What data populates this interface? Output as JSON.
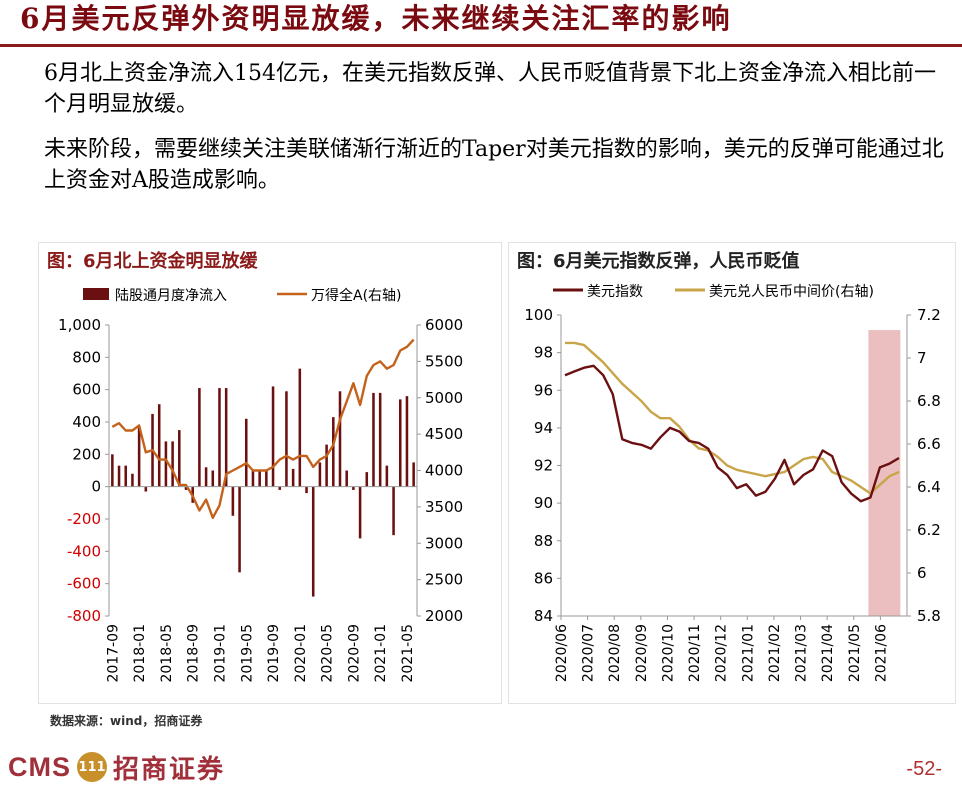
{
  "header": {
    "title": "6月美元反弹外资明显放缓，未来继续关注汇率的影响"
  },
  "body": {
    "paragraph1": "6月北上资金净流入154亿元，在美元指数反弹、人民币贬值背景下北上资金净流入相比前一个月明显放缓。",
    "paragraph2": "未来阶段，需要继续关注美联储渐行渐近的Taper对美元指数的影响，美元的反弹可能通过北上资金对A股造成影响。"
  },
  "colors": {
    "title": "#7a0a10",
    "bar": "#6b1010",
    "line_orange": "#c4621c",
    "usd": "#6b1010",
    "cny": "#c8a548",
    "shade": "#e8b4b4"
  },
  "chart_data": [
    {
      "type": "bar",
      "title": "图：6月北上资金明显放缓",
      "legend": [
        "陆股通月度净流入",
        "万得全A(右轴)"
      ],
      "legend_position": "top",
      "x": [
        "2017-09",
        "2017-10",
        "2017-11",
        "2017-12",
        "2018-01",
        "2018-02",
        "2018-03",
        "2018-04",
        "2018-05",
        "2018-06",
        "2018-07",
        "2018-08",
        "2018-09",
        "2018-10",
        "2018-11",
        "2018-12",
        "2019-01",
        "2019-02",
        "2019-03",
        "2019-04",
        "2019-05",
        "2019-06",
        "2019-07",
        "2019-08",
        "2019-09",
        "2019-10",
        "2019-11",
        "2019-12",
        "2020-01",
        "2020-02",
        "2020-03",
        "2020-04",
        "2020-05",
        "2020-06",
        "2020-07",
        "2020-08",
        "2020-09",
        "2020-10",
        "2020-11",
        "2020-12",
        "2021-01",
        "2021-02",
        "2021-03",
        "2021-04",
        "2021-05",
        "2021-06"
      ],
      "tick_labels": [
        "2017-09",
        "2018-01",
        "2018-05",
        "2018-09",
        "2019-01",
        "2019-05",
        "2019-09",
        "2020-01",
        "2020-05",
        "2020-09",
        "2021-01",
        "2021-05"
      ],
      "series": [
        {
          "name": "陆股通月度净流入",
          "axis": "left",
          "values": [
            200,
            130,
            130,
            80,
            370,
            -30,
            450,
            510,
            280,
            280,
            350,
            -20,
            -100,
            610,
            120,
            100,
            610,
            610,
            -180,
            -530,
            420,
            100,
            100,
            100,
            620,
            -20,
            590,
            110,
            730,
            -40,
            -680,
            150,
            260,
            430,
            590,
            100,
            -20,
            -320,
            90,
            580,
            580,
            130,
            -300,
            540,
            560,
            150
          ]
        },
        {
          "name": "万得全A(右轴)",
          "axis": "right",
          "values": [
            4600,
            4650,
            4550,
            4550,
            4620,
            4250,
            4280,
            4150,
            4150,
            4000,
            3800,
            3800,
            3650,
            3450,
            3600,
            3350,
            3520,
            3950,
            4000,
            4050,
            4100,
            4000,
            4000,
            4000,
            4050,
            4150,
            4200,
            4150,
            4200,
            4200,
            4050,
            4150,
            4200,
            4350,
            4700,
            4950,
            5200,
            4900,
            5300,
            5450,
            5500,
            5400,
            5450,
            5650,
            5700,
            5800
          ]
        }
      ],
      "ylim_left": [
        -800,
        1000
      ],
      "yticks_left": [
        "1,000",
        "800",
        "600",
        "400",
        "200",
        "0",
        "-200",
        "-400",
        "-600",
        "-800"
      ],
      "ylim_right": [
        2000,
        6000
      ],
      "yticks_right": [
        "6000",
        "5500",
        "5000",
        "4500",
        "4000",
        "3500",
        "3000",
        "2500",
        "2000"
      ]
    },
    {
      "type": "line",
      "title": "图：6月美元指数反弹，人民币贬值",
      "legend": [
        "美元指数",
        "美元兑人民币中间价(右轴)"
      ],
      "legend_position": "top",
      "x_labels": [
        "2020/06",
        "2020/07",
        "2020/08",
        "2020/09",
        "2020/10",
        "2020/11",
        "2020/12",
        "2021/01",
        "2021/02",
        "2021/03",
        "2021/04",
        "2021/05",
        "2021/06"
      ],
      "series": [
        {
          "name": "美元指数",
          "axis": "left",
          "values": [
            96.8,
            97.0,
            97.2,
            97.3,
            96.8,
            95.8,
            93.4,
            93.2,
            93.1,
            92.9,
            93.5,
            94.0,
            93.8,
            93.3,
            93.2,
            92.9,
            91.9,
            91.5,
            90.8,
            91.0,
            90.4,
            90.6,
            91.3,
            92.3,
            91.0,
            91.5,
            91.8,
            92.8,
            92.5,
            91.1,
            90.5,
            90.1,
            90.3,
            91.9,
            92.1,
            92.4
          ]
        },
        {
          "name": "美元兑人民币中间价(右轴)",
          "axis": "right",
          "values": [
            7.07,
            7.07,
            7.06,
            7.02,
            6.98,
            6.93,
            6.88,
            6.84,
            6.8,
            6.75,
            6.72,
            6.72,
            6.68,
            6.62,
            6.58,
            6.57,
            6.54,
            6.5,
            6.48,
            6.47,
            6.46,
            6.45,
            6.46,
            6.47,
            6.5,
            6.53,
            6.54,
            6.53,
            6.47,
            6.45,
            6.43,
            6.4,
            6.37,
            6.41,
            6.45,
            6.47
          ]
        }
      ],
      "shaded_region": [
        "2021/05末",
        "2021/06"
      ],
      "ylim_left": [
        84,
        100
      ],
      "yticks_left": [
        "100",
        "98",
        "96",
        "94",
        "92",
        "90",
        "88",
        "86",
        "84"
      ],
      "ylim_right": [
        5.8,
        7.2
      ],
      "yticks_right": [
        "7.2",
        "7",
        "6.8",
        "6.6",
        "6.4",
        "6.2",
        "6",
        "5.8"
      ]
    }
  ],
  "footer": {
    "source": "数据来源：wind，招商证券",
    "logo_text": "CMS",
    "logo_badge": "111",
    "logo_cn": "招商证券",
    "page_number": "-52-"
  }
}
